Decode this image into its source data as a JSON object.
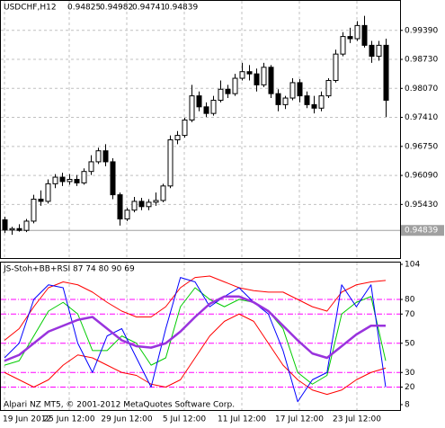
{
  "chart_data": [
    {
      "type": "candlestick",
      "title": "USDCHF,H12",
      "quote": [
        0.94825,
        0.94982,
        0.94741,
        0.94839
      ],
      "categories": [
        "19 Jun 2012",
        null,
        null,
        null,
        null,
        null,
        null,
        null,
        null,
        "25 Jun 12:00",
        null,
        null,
        null,
        null,
        null,
        null,
        null,
        "29 Jun 12:00",
        null,
        null,
        null,
        null,
        null,
        null,
        null,
        "5 Jul 12:00",
        null,
        null,
        null,
        null,
        null,
        null,
        null,
        "11 Jul 12:00",
        null,
        null,
        null,
        null,
        null,
        null,
        null,
        "17 Jul 12:00",
        null,
        null,
        null,
        null,
        null,
        null,
        null,
        "23 Jul 12:00",
        null,
        null,
        null,
        null
      ],
      "open": [
        0.9508,
        0.9485,
        0.9488,
        0.9484,
        0.9505,
        0.9555,
        0.955,
        0.959,
        0.9605,
        0.9595,
        0.96,
        0.9592,
        0.9618,
        0.964,
        0.9665,
        0.964,
        0.9565,
        0.951,
        0.953,
        0.955,
        0.9538,
        0.9548,
        0.9552,
        0.9585,
        0.969,
        0.97,
        0.9735,
        0.979,
        0.9765,
        0.975,
        0.978,
        0.9805,
        0.9795,
        0.983,
        0.9845,
        0.984,
        0.9815,
        0.9855,
        0.9795,
        0.977,
        0.9785,
        0.982,
        0.979,
        0.977,
        0.9762,
        0.979,
        0.9825,
        0.9885,
        0.9925,
        0.992,
        0.995,
        0.9905,
        0.988,
        0.9905
      ],
      "high": [
        0.9515,
        0.9492,
        0.9498,
        0.951,
        0.9565,
        0.9575,
        0.96,
        0.9612,
        0.9615,
        0.9612,
        0.961,
        0.9625,
        0.9655,
        0.9672,
        0.968,
        0.9648,
        0.957,
        0.9535,
        0.956,
        0.9558,
        0.9555,
        0.957,
        0.959,
        0.97,
        0.971,
        0.974,
        0.9815,
        0.98,
        0.9775,
        0.979,
        0.9825,
        0.9815,
        0.984,
        0.9865,
        0.986,
        0.9852,
        0.9865,
        0.986,
        0.9805,
        0.979,
        0.983,
        0.9828,
        0.98,
        0.979,
        0.98,
        0.983,
        0.9895,
        0.9935,
        0.9945,
        0.996,
        0.9972,
        0.9915,
        0.9915,
        0.992
      ],
      "low": [
        0.9478,
        0.9474,
        0.9481,
        0.948,
        0.95,
        0.954,
        0.9545,
        0.958,
        0.9585,
        0.9588,
        0.9585,
        0.9588,
        0.961,
        0.9635,
        0.963,
        0.9555,
        0.9495,
        0.9505,
        0.9525,
        0.953,
        0.953,
        0.954,
        0.9548,
        0.958,
        0.968,
        0.9695,
        0.973,
        0.9755,
        0.9742,
        0.9745,
        0.9775,
        0.9785,
        0.979,
        0.9825,
        0.9825,
        0.98,
        0.981,
        0.9785,
        0.9755,
        0.976,
        0.978,
        0.9775,
        0.9762,
        0.975,
        0.9755,
        0.9785,
        0.982,
        0.988,
        0.991,
        0.9915,
        0.99,
        0.9865,
        0.987,
        0.9742
      ],
      "close": [
        0.9485,
        0.9488,
        0.9484,
        0.9505,
        0.9555,
        0.955,
        0.959,
        0.9605,
        0.9595,
        0.96,
        0.9592,
        0.9618,
        0.964,
        0.9665,
        0.964,
        0.9565,
        0.951,
        0.953,
        0.955,
        0.9538,
        0.9548,
        0.9552,
        0.9585,
        0.969,
        0.97,
        0.9735,
        0.979,
        0.9765,
        0.975,
        0.978,
        0.9805,
        0.9795,
        0.983,
        0.9845,
        0.984,
        0.9815,
        0.9855,
        0.9795,
        0.977,
        0.9785,
        0.982,
        0.979,
        0.977,
        0.9762,
        0.979,
        0.9825,
        0.9885,
        0.9925,
        0.992,
        0.995,
        0.9905,
        0.988,
        0.9905,
        0.978
      ],
      "up_color": "#ffffff",
      "down_color": "#000000",
      "ylim": [
        0.9421,
        1.0006
      ],
      "yticks": [
        {
          "value": 0.9939,
          "label": "0.99390"
        },
        {
          "value": 0.9873,
          "label": "0.98730"
        },
        {
          "value": 0.9807,
          "label": "0.98070"
        },
        {
          "value": 0.9741,
          "label": "0.97410"
        },
        {
          "value": 0.9675,
          "label": "0.96750"
        },
        {
          "value": 0.9609,
          "label": "0.96090"
        },
        {
          "value": 0.9543,
          "label": "0.95430"
        }
      ],
      "current_price": 0.94839,
      "grid": true
    },
    {
      "type": "line",
      "title": "JS-Stoh+BB+RSI 87 74 80 90 69",
      "ylim": [
        8,
        104
      ],
      "yticks": [
        104,
        80,
        70,
        50,
        30,
        20,
        8
      ],
      "level_color": "#ff00ff",
      "series": [
        {
          "color": "#ff0000",
          "values": [
            52,
            60,
            75,
            88,
            92,
            90,
            85,
            78,
            72,
            68,
            68,
            75,
            88,
            95,
            96,
            92,
            88,
            86,
            85,
            85,
            80,
            75,
            72,
            85,
            90,
            92,
            93
          ]
        },
        {
          "color": "#ff0000",
          "values": [
            30,
            25,
            20,
            25,
            35,
            42,
            40,
            35,
            30,
            28,
            22,
            20,
            25,
            40,
            55,
            65,
            70,
            65,
            50,
            35,
            25,
            18,
            15,
            18,
            25,
            30,
            33
          ]
        },
        {
          "color": "#00cc00",
          "values": [
            35,
            38,
            55,
            72,
            78,
            70,
            45,
            45,
            55,
            50,
            35,
            40,
            75,
            88,
            80,
            75,
            80,
            78,
            72,
            60,
            30,
            22,
            28,
            70,
            78,
            82,
            38
          ]
        },
        {
          "color": "#0000ff",
          "values": [
            40,
            50,
            80,
            90,
            88,
            50,
            30,
            55,
            60,
            40,
            20,
            60,
            95,
            92,
            75,
            82,
            88,
            78,
            70,
            45,
            10,
            25,
            30,
            90,
            75,
            90,
            20
          ]
        },
        {
          "color": "#9933dd",
          "width": 2.5,
          "values": [
            38,
            42,
            50,
            58,
            62,
            66,
            68,
            60,
            52,
            48,
            47,
            50,
            58,
            68,
            77,
            82,
            82,
            78,
            72,
            62,
            52,
            43,
            40,
            48,
            56,
            62,
            62
          ]
        }
      ]
    }
  ],
  "footer": "Alpari NZ MT5, © 2001-2012 MetaQuotes Software Corp."
}
